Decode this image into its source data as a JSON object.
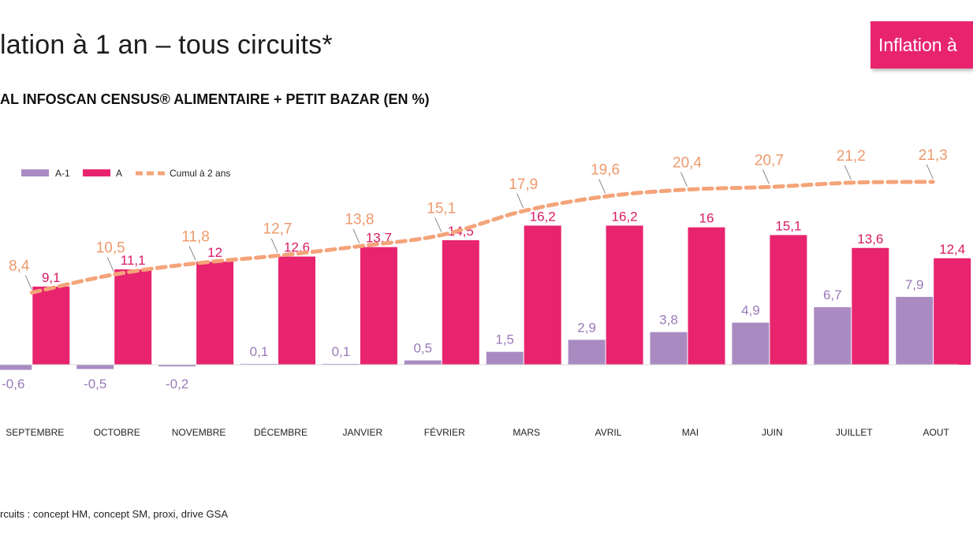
{
  "page": {
    "title": "lation à 1 an – tous circuits*",
    "subtitle": "AL INFOSCAN CENSUS® ALIMENTAIRE + PETIT BAZAR (EN %)",
    "badge": "Inflation à",
    "footnote": "rcuits : concept HM, concept SM, proxi, drive GSA"
  },
  "colors": {
    "a1": "#a98bc2",
    "a": "#e8246f",
    "cumul": "#f4a47a",
    "a1_label": "#9b7ab8",
    "a_label": "#d81b63",
    "cumul_label": "#ee9a6c"
  },
  "chart_data": {
    "type": "bar",
    "categories": [
      "SEPTEMBRE",
      "OCTOBRE",
      "NOVEMBRE",
      "DÉCEMBRE",
      "JANVIER",
      "FÉVRIER",
      "MARS",
      "AVRIL",
      "MAI",
      "JUIN",
      "JUILLET",
      "AOUT"
    ],
    "series": [
      {
        "name": "A-1",
        "type": "bar",
        "values": [
          -0.6,
          -0.5,
          -0.2,
          0.1,
          0.1,
          0.5,
          1.5,
          2.9,
          3.8,
          4.9,
          6.7,
          7.9
        ],
        "labels": [
          "-0,6",
          "-0,5",
          "-0,2",
          "0,1",
          "0,1",
          "0,5",
          "1,5",
          "2,9",
          "3,8",
          "4,9",
          "6,7",
          "7,9"
        ]
      },
      {
        "name": "A",
        "type": "bar",
        "values": [
          9.1,
          11.1,
          12,
          12.6,
          13.7,
          14.5,
          16.2,
          16.2,
          16,
          15.1,
          13.6,
          12.4
        ],
        "labels": [
          "9,1",
          "11,1",
          "12",
          "12,6",
          "13,7",
          "14,5",
          "16,2",
          "16,2",
          "16",
          "15,1",
          "13,6",
          "12,4"
        ]
      },
      {
        "name": "Cumul à 2 ans",
        "type": "line",
        "values": [
          8.4,
          10.5,
          11.8,
          12.7,
          13.8,
          15.1,
          17.9,
          19.6,
          20.4,
          20.7,
          21.2,
          21.3
        ],
        "labels": [
          "8,4",
          "10,5",
          "11,8",
          "12,7",
          "13,8",
          "15,1",
          "17,9",
          "19,6",
          "20,4",
          "20,7",
          "21,2",
          "21,3"
        ]
      }
    ],
    "legend": [
      "A-1",
      "A",
      "Cumul à 2 ans"
    ],
    "legend_position": "top-left",
    "grid": false
  }
}
